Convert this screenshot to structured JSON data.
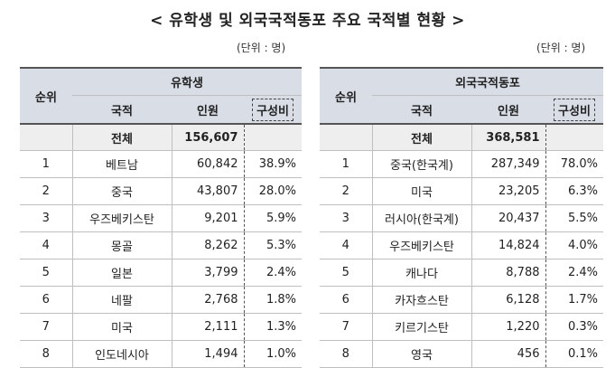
{
  "title": "< 유학생 및 외국국적동포 주요 국적별 현황 >",
  "unit_left": "(단위 : 명)",
  "unit_right": "(단위 : 명)",
  "left_table": {
    "rank_header": "순위",
    "group_header": "유학생",
    "col_nationality": "국적",
    "col_count": "인원",
    "col_ratio": "구성비",
    "total": {
      "label": "전체",
      "count": "156,607",
      "ratio": ""
    },
    "rows": [
      {
        "rank": "1",
        "nationality": "베트남",
        "count": "60,842",
        "ratio": "38.9%"
      },
      {
        "rank": "2",
        "nationality": "중국",
        "count": "43,807",
        "ratio": "28.0%"
      },
      {
        "rank": "3",
        "nationality": "우즈베키스탄",
        "count": "9,201",
        "ratio": "5.9%"
      },
      {
        "rank": "4",
        "nationality": "몽골",
        "count": "8,262",
        "ratio": "5.3%"
      },
      {
        "rank": "5",
        "nationality": "일본",
        "count": "3,799",
        "ratio": "2.4%"
      },
      {
        "rank": "6",
        "nationality": "네팔",
        "count": "2,768",
        "ratio": "1.8%"
      },
      {
        "rank": "7",
        "nationality": "미국",
        "count": "2,111",
        "ratio": "1.3%"
      },
      {
        "rank": "8",
        "nationality": "인도네시아",
        "count": "1,494",
        "ratio": "1.0%"
      }
    ]
  },
  "right_table": {
    "rank_header": "순위",
    "group_header": "외국국적동포",
    "col_nationality": "국적",
    "col_count": "인원",
    "col_ratio": "구성비",
    "total": {
      "label": "전체",
      "count": "368,581",
      "ratio": ""
    },
    "rows": [
      {
        "rank": "1",
        "nationality": "중국(한국계)",
        "count": "287,349",
        "ratio": "78.0%"
      },
      {
        "rank": "2",
        "nationality": "미국",
        "count": "23,205",
        "ratio": "6.3%"
      },
      {
        "rank": "3",
        "nationality": "러시아(한국계)",
        "count": "20,437",
        "ratio": "5.5%"
      },
      {
        "rank": "4",
        "nationality": "우즈베키스탄",
        "count": "14,824",
        "ratio": "4.0%"
      },
      {
        "rank": "5",
        "nationality": "캐나다",
        "count": "8,788",
        "ratio": "2.4%"
      },
      {
        "rank": "6",
        "nationality": "카자흐스탄",
        "count": "6,128",
        "ratio": "1.7%"
      },
      {
        "rank": "7",
        "nationality": "키르기스탄",
        "count": "1,220",
        "ratio": "0.3%"
      },
      {
        "rank": "8",
        "nationality": "영국",
        "count": "456",
        "ratio": "0.1%"
      }
    ]
  }
}
